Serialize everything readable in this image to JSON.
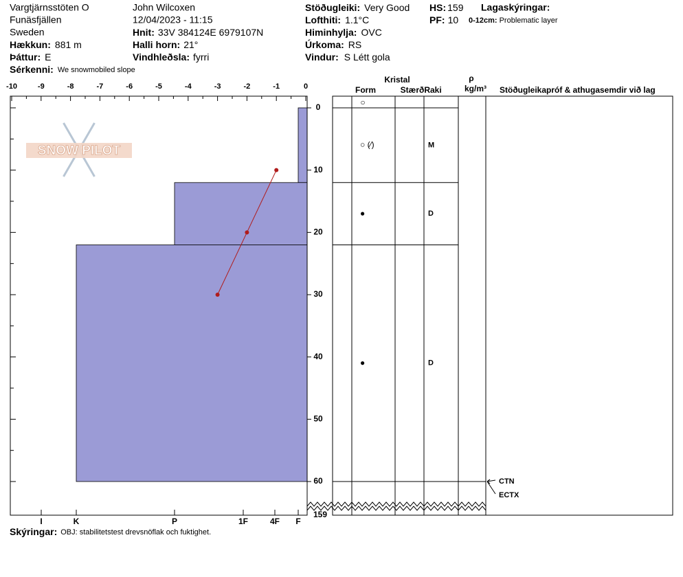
{
  "header": {
    "site": "Vargtjärnsstöten O",
    "area": "Funäsfjällen",
    "country": "Sweden",
    "observer": "John Wilcoxen",
    "datetime": "12/04/2023 - 11:15",
    "fields": [
      {
        "label": "Hækkun:",
        "value": "881 m"
      },
      {
        "label": "Þáttur:",
        "value": "E"
      },
      {
        "label": "Sérkenni:",
        "value": "We snowmobiled slope"
      },
      {
        "label": "Hnit:",
        "value": "33V 384124E 6979107N"
      },
      {
        "label": "Halli horn:",
        "value": "21°"
      },
      {
        "label": "Vindhleðsla:",
        "value": "fyrri"
      },
      {
        "label": "Stöðugleiki:",
        "value": "Very Good"
      },
      {
        "label": "Lofthiti:",
        "value": "1.1°C"
      },
      {
        "label": "Himinhylja:",
        "value": "OVC"
      },
      {
        "label": "Úrkoma:",
        "value": "RS"
      },
      {
        "label": "Vindur:",
        "value": "S Létt gola"
      },
      {
        "label": "HS:",
        "value": "159"
      },
      {
        "label": "PF:",
        "value": "10"
      }
    ],
    "layer_notes_title": "Lagaskýringar:",
    "layer_notes": [
      {
        "label": "0-12cm:",
        "value": "Problematic layer"
      }
    ]
  },
  "chart_data": {
    "type": "snow-profile",
    "logo": "SNOW PILOT",
    "xlim": [
      -10,
      0
    ],
    "xticks": [
      -10,
      -9,
      -8,
      -7,
      -6,
      -5,
      -4,
      -3,
      -2,
      -1,
      0
    ],
    "ylim": [
      0,
      60
    ],
    "yticks": [
      0,
      10,
      20,
      30,
      40,
      50,
      60
    ],
    "total_depth": 159,
    "hardness_scale": [
      "I",
      "K",
      "P",
      "1F",
      "4F",
      "F"
    ],
    "layer_color": "#9b9bd6",
    "temperature": {
      "color": "#b01c1c",
      "depth": [
        10,
        20,
        30
      ],
      "values": [
        -1,
        -2,
        -3
      ]
    },
    "surface_grain": "○",
    "layers": [
      {
        "top": 0,
        "bottom": 12,
        "hardness": "F",
        "grain": "○ (⁄)",
        "wetness": "M"
      },
      {
        "top": 12,
        "bottom": 22,
        "hardness": "P",
        "grain": "●",
        "wetness": "D"
      },
      {
        "top": 22,
        "bottom": 60,
        "hardness": "K",
        "grain": "●",
        "wetness": "D"
      }
    ],
    "columns": {
      "crystal": "Kristal",
      "form": "Form",
      "size": "Stærð",
      "wetness": "Raki",
      "density": "ρ",
      "density_unit": "kg/m³",
      "comments": "Stöðugleikapróf & athugasemdir við lag"
    },
    "tests": [
      {
        "name": "CTN",
        "depth": 60
      },
      {
        "name": "ECTX",
        "depth": 60
      }
    ]
  },
  "footer": {
    "label": "Skýringar:",
    "value": "OBJ: stabilitetstest drevsnöflak och fuktighet."
  }
}
